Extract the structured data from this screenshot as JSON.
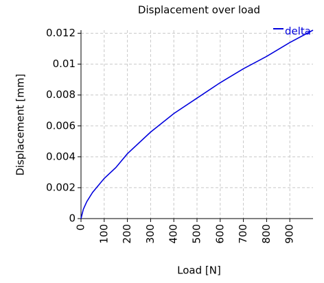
{
  "chart_data": {
    "type": "line",
    "title": "Displacement over load",
    "x_label": "Load [N]",
    "y_label": "Displacement [mm]",
    "x": [
      0,
      10,
      25,
      50,
      100,
      150,
      200,
      300,
      400,
      500,
      600,
      700,
      800,
      900,
      1000
    ],
    "series": [
      {
        "name": "delta",
        "color": "#0000dd",
        "values": [
          0,
          0.0006,
          0.0011,
          0.0017,
          0.0026,
          0.0033,
          0.0042,
          0.0056,
          0.0068,
          0.0078,
          0.0088,
          0.0097,
          0.0105,
          0.0114,
          0.0122
        ]
      }
    ],
    "xlim": [
      0,
      1000
    ],
    "xticks": [
      0,
      100,
      200,
      300,
      400,
      500,
      600,
      700,
      800,
      900
    ],
    "ylim": [
      0,
      0.0122
    ],
    "yticks": [
      0,
      0.002,
      0.004,
      0.006,
      0.008,
      0.01,
      0.012
    ],
    "grid": true,
    "legend": "top-right"
  }
}
